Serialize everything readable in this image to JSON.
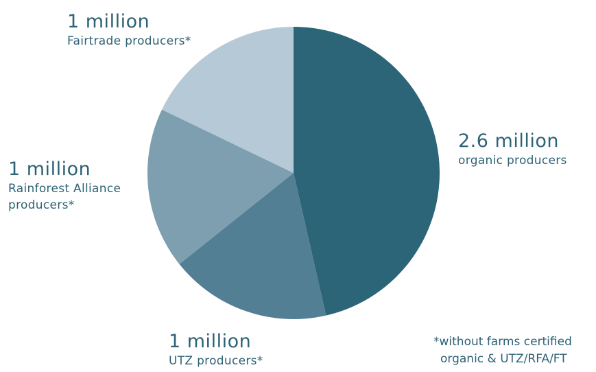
{
  "chart_data": {
    "type": "pie",
    "title": "",
    "slices": [
      {
        "value_label": "2.6 million",
        "category_label": "organic producers",
        "value": 2.6,
        "color": "#2d6578"
      },
      {
        "value_label": "1 million",
        "category_label": "UTZ producers*",
        "value": 1.0,
        "color": "#527f93"
      },
      {
        "value_label": "1 million",
        "category_label": [
          "Rainforest Alliance",
          "producers*"
        ],
        "value": 1.0,
        "color": "#7e9fb0"
      },
      {
        "value_label": "1 million",
        "category_label": "Fairtrade producers*",
        "value": 1.0,
        "color": "#b5c9d6"
      }
    ],
    "footnote": [
      "*without farms certified",
      "organic & UTZ/RFA/FT"
    ]
  }
}
